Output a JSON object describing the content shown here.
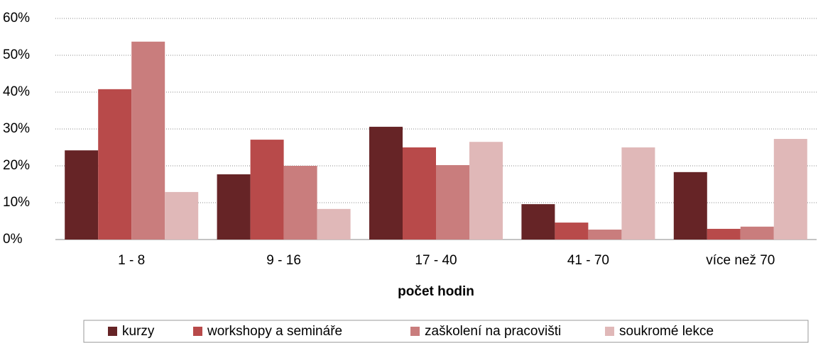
{
  "chart_data": {
    "type": "bar",
    "x_label": "počet hodin",
    "categories": [
      "1 - 8",
      "9 - 16",
      "17 - 40",
      "41 - 70",
      "více než 70"
    ],
    "series": [
      {
        "name": "kurzy",
        "color": "#662426",
        "values": [
          24.2,
          17.7,
          30.6,
          9.6,
          18.3
        ]
      },
      {
        "name": "workshopy a semináře",
        "color": "#b84a4a",
        "values": [
          40.8,
          27.1,
          25.0,
          4.6,
          2.9
        ]
      },
      {
        "name": "zaškolení na pracovišti",
        "color": "#c97d7d",
        "values": [
          53.7,
          20.0,
          20.2,
          2.7,
          3.5
        ]
      },
      {
        "name": "soukromé lekce",
        "color": "#e0b8b8",
        "values": [
          12.9,
          8.3,
          26.5,
          25.0,
          27.3
        ]
      }
    ],
    "ylim": [
      0,
      60
    ],
    "yticks": [
      {
        "value": 0,
        "label": "0%"
      },
      {
        "value": 10,
        "label": "10%"
      },
      {
        "value": 20,
        "label": "20%"
      },
      {
        "value": 30,
        "label": "30%"
      },
      {
        "value": 40,
        "label": "40%"
      },
      {
        "value": 50,
        "label": "50%"
      },
      {
        "value": 60,
        "label": "60%"
      }
    ],
    "grid": true,
    "legend": "bottom"
  }
}
